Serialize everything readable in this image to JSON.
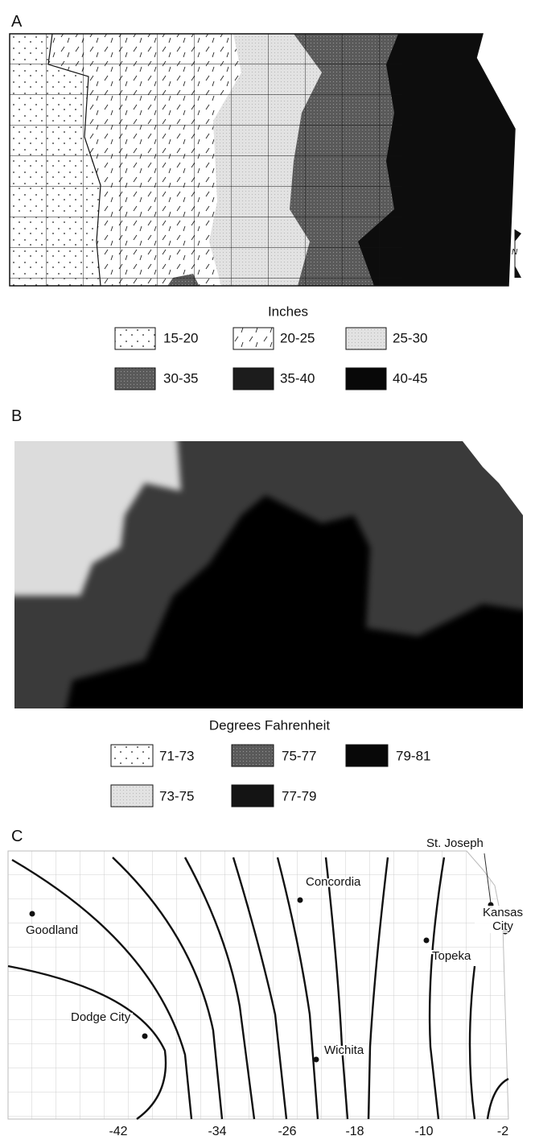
{
  "panels": [
    {
      "label": "A",
      "north_label": "N",
      "legend_title": "Inches",
      "legend": [
        "15-20",
        "20-25",
        "25-30",
        "30-35",
        "35-40",
        "40-45"
      ]
    },
    {
      "label": "B",
      "legend_title": "Degrees Fahrenheit",
      "legend": [
        "71-73",
        "75-77",
        "79-81",
        "73-75",
        "77-79"
      ]
    },
    {
      "label": "C",
      "cities": [
        "St. Joseph",
        "Concordia",
        "Goodland",
        "Kansas City",
        "Topeka",
        "Dodge City",
        "Wichita"
      ],
      "isolines": [
        "-42",
        "-34",
        "-26",
        "-18",
        "-10",
        "-2"
      ]
    }
  ]
}
